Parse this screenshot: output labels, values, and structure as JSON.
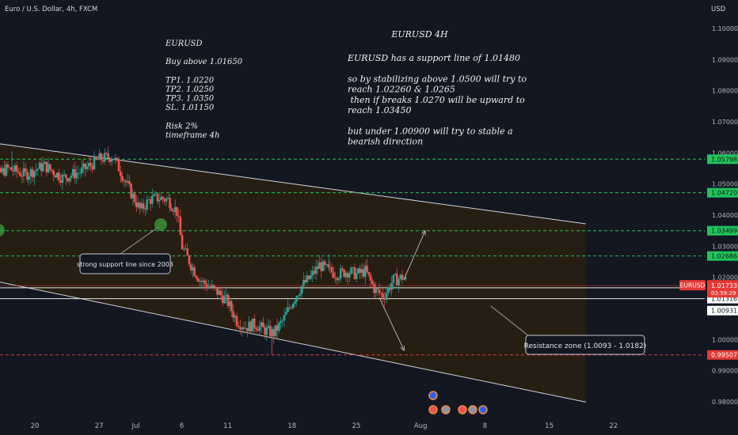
{
  "header": {
    "title": "Euro / U.S. Dollar, 4h, FXCM",
    "currency": "USD"
  },
  "colors": {
    "background": "#131722",
    "up": "#26a69a",
    "down": "#ef5350",
    "channel_fill": "#2a1f12",
    "dashed_green": "#26c25a",
    "dashed_red": "#e03a3a",
    "white_line": "#e6e6e6",
    "green_badge": "#1fc45a",
    "red_badge": "#e53935"
  },
  "trade_notes": {
    "lines": [
      "EURUSD",
      "",
      "Buy above 1.01650",
      "",
      "TP1. 1.0220",
      "TP2. 1.0250",
      "TP3. 1.0350",
      "SL. 1.01150",
      "",
      "Risk 2%",
      "timeframe 4h"
    ]
  },
  "analysis": {
    "title": "EURUSD 4H",
    "lines": [
      "EURUSD has a support line of 1.01480",
      "",
      "so by stabilizing above 1.0500 will try to",
      "reach 1.02260 & 1.0265",
      " then if breaks 1.0270  will be upward to",
      "reach 1.03450",
      "",
      "but under 1.00900 will try to stable a",
      "bearish direction"
    ]
  },
  "callouts": {
    "support": "strong support line since 2003",
    "resistance": "Resistance zone (1.0093  -  1.0182)"
  },
  "chart_data": {
    "type": "candlestick",
    "symbol": "EURUSD",
    "interval": "4h",
    "ylim": [
      0.9785,
      1.1045
    ],
    "y_ticks": [
      0.98,
      0.99,
      1.0,
      1.01,
      1.02,
      1.03,
      1.04,
      1.05,
      1.06,
      1.07,
      1.08,
      1.09,
      1.1
    ],
    "y_tick_labels": [
      "0.98000",
      "0.99000",
      "1.00000",
      "1.01000",
      "1.02000",
      "1.03000",
      "1.04000",
      "1.05000",
      "1.06000",
      "1.07000",
      "1.08000",
      "1.09000",
      "1.10000"
    ],
    "x_ticks": [
      {
        "label": "20",
        "day": 20
      },
      {
        "label": "27",
        "day": 27
      },
      {
        "label": "Jul",
        "day": 31
      },
      {
        "label": "6",
        "day": 36
      },
      {
        "label": "11",
        "day": 41
      },
      {
        "label": "18",
        "day": 48
      },
      {
        "label": "25",
        "day": 55
      },
      {
        "label": "Aug",
        "day": 62
      },
      {
        "label": "8",
        "day": 69
      },
      {
        "label": "15",
        "day": 76
      },
      {
        "label": "22",
        "day": 83
      }
    ],
    "horizontal_levels": [
      {
        "value": 1.05798,
        "label": "1.05798",
        "style": "dashed-green"
      },
      {
        "value": 1.0472,
        "label": "1.04720",
        "style": "dashed-green"
      },
      {
        "value": 1.03499,
        "label": "1.03499",
        "style": "dashed-green"
      },
      {
        "value": 1.02686,
        "label": "1.02686",
        "style": "dashed-green"
      },
      {
        "value": 1.01663,
        "label": "1.01663",
        "style": "solid-white-green-badge"
      },
      {
        "value": 1.01316,
        "label": "1.01316",
        "style": "solid-white"
      },
      {
        "value": 0.99507,
        "label": "0.99507",
        "style": "dashed-red"
      }
    ],
    "extra_price_labels": [
      {
        "value": 1.00931,
        "label": "1.00931"
      }
    ],
    "current_price": {
      "value": 1.01733,
      "label": "1.01733",
      "countdown": "03:59:29",
      "tag": "EURUSD"
    },
    "channel": {
      "upper": {
        "from": {
          "day": 14,
          "price": 1.0638
        },
        "to": {
          "day": 80,
          "price": 1.0372
        }
      },
      "lower": {
        "from": {
          "day": 14,
          "price": 1.0198
        },
        "to": {
          "day": 80,
          "price": 0.9799
        }
      },
      "right_edge_day": 80
    },
    "projections": [
      {
        "from": {
          "day": 60.2,
          "price": 1.0195
        },
        "to": {
          "day": 62.5,
          "price": 1.035
        }
      },
      {
        "from": {
          "day": 57.5,
          "price": 1.0135
        },
        "to": {
          "day": 60.2,
          "price": 0.9965
        }
      }
    ],
    "candle_path": [
      {
        "day": 14.0,
        "price": 1.046
      },
      {
        "day": 15.5,
        "price": 1.052
      },
      {
        "day": 17.0,
        "price": 1.055
      },
      {
        "day": 19.0,
        "price": 1.053
      },
      {
        "day": 21.0,
        "price": 1.056
      },
      {
        "day": 23.0,
        "price": 1.052
      },
      {
        "day": 25.0,
        "price": 1.054
      },
      {
        "day": 27.0,
        "price": 1.058
      },
      {
        "day": 28.5,
        "price": 1.059
      },
      {
        "day": 29.5,
        "price": 1.053
      },
      {
        "day": 30.5,
        "price": 1.047
      },
      {
        "day": 31.5,
        "price": 1.0415
      },
      {
        "day": 32.5,
        "price": 1.045
      },
      {
        "day": 33.5,
        "price": 1.0455
      },
      {
        "day": 34.5,
        "price": 1.045
      },
      {
        "day": 35.5,
        "price": 1.041
      },
      {
        "day": 36.0,
        "price": 1.03
      },
      {
        "day": 37.0,
        "price": 1.024
      },
      {
        "day": 38.0,
        "price": 1.019
      },
      {
        "day": 39.0,
        "price": 1.017
      },
      {
        "day": 40.0,
        "price": 1.015
      },
      {
        "day": 41.0,
        "price": 1.012
      },
      {
        "day": 42.0,
        "price": 1.006
      },
      {
        "day": 43.0,
        "price": 1.004
      },
      {
        "day": 44.0,
        "price": 1.005
      },
      {
        "day": 45.0,
        "price": 1.003
      },
      {
        "day": 46.0,
        "price": 1.002
      },
      {
        "day": 47.0,
        "price": 1.006
      },
      {
        "day": 48.0,
        "price": 1.012
      },
      {
        "day": 49.0,
        "price": 1.017
      },
      {
        "day": 50.0,
        "price": 1.02
      },
      {
        "day": 51.0,
        "price": 1.024
      },
      {
        "day": 52.0,
        "price": 1.022
      },
      {
        "day": 53.0,
        "price": 1.021
      },
      {
        "day": 54.0,
        "price": 1.022
      },
      {
        "day": 55.0,
        "price": 1.021
      },
      {
        "day": 56.0,
        "price": 1.022
      },
      {
        "day": 57.0,
        "price": 1.016
      },
      {
        "day": 58.0,
        "price": 1.014
      },
      {
        "day": 59.0,
        "price": 1.019
      },
      {
        "day": 60.0,
        "price": 1.02
      },
      {
        "day": 60.5,
        "price": 1.0185
      }
    ],
    "wick_extremes": [
      {
        "day": 45.8,
        "low": 0.9952
      },
      {
        "day": 52.0,
        "high": 1.0275
      },
      {
        "day": 17.5,
        "high": 1.0605
      },
      {
        "day": 28.0,
        "high": 1.061
      }
    ]
  }
}
